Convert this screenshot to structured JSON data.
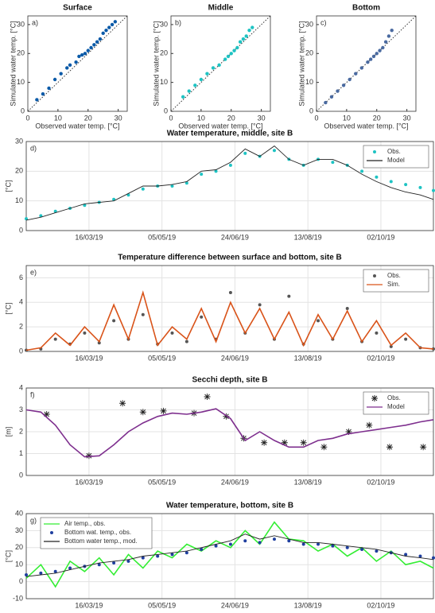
{
  "chart_data": [
    {
      "type": "scatter",
      "title": "Surface",
      "annotation": "a)",
      "x_label": "Observed water temp. [°C]",
      "y_label": "Simulated water temp. [°C]",
      "x": [
        3,
        5,
        7,
        9,
        11,
        13,
        14,
        16,
        17,
        18,
        19,
        20,
        21,
        22,
        23,
        24,
        25,
        26,
        27,
        28,
        29
      ],
      "values": [
        4,
        6,
        8,
        11,
        13,
        15,
        16,
        17,
        19,
        19.5,
        20,
        21,
        22,
        23,
        24,
        25,
        27,
        28,
        29,
        30,
        31
      ],
      "color": "#0a5aa8",
      "xlim": [
        0,
        33
      ],
      "ylim": [
        0,
        33
      ],
      "xticks": [
        0,
        10,
        20,
        30
      ],
      "yticks": [
        0,
        10,
        20,
        30
      ],
      "grid": false
    },
    {
      "type": "scatter",
      "title": "Middle",
      "annotation": "b)",
      "x_label": "Observed water temp. [°C]",
      "y_label": "Simulated water temp. [°C]",
      "x": [
        4,
        6,
        8,
        10,
        12,
        14,
        16,
        18,
        19,
        20,
        21,
        22,
        23,
        24,
        25,
        26,
        27
      ],
      "values": [
        5,
        7,
        9,
        11,
        13,
        15,
        16,
        18,
        19,
        20,
        21,
        22,
        24,
        25,
        26,
        28,
        29
      ],
      "color": "#1ec3c3",
      "xlim": [
        0,
        33
      ],
      "ylim": [
        0,
        33
      ],
      "xticks": [
        0,
        10,
        20,
        30
      ],
      "yticks": [
        0,
        10,
        20,
        30
      ],
      "grid": false
    },
    {
      "type": "scatter",
      "title": "Bottom",
      "annotation": "c)",
      "x_label": "Observed water temp. [°C]",
      "y_label": "Simulated water temp. [°C]",
      "x": [
        3,
        5,
        7,
        9,
        11,
        13,
        15,
        17,
        18,
        19,
        20,
        21,
        22,
        23,
        24,
        25
      ],
      "values": [
        3,
        5,
        7,
        9,
        11,
        13,
        15,
        17,
        18,
        19,
        20,
        21,
        22,
        24,
        26,
        28
      ],
      "color": "#4a6aa0",
      "xlim": [
        0,
        33
      ],
      "ylim": [
        0,
        33
      ],
      "xticks": [
        0,
        10,
        20,
        30
      ],
      "yticks": [
        0,
        10,
        20,
        30
      ],
      "grid": false
    },
    {
      "type": "line",
      "title": "Water temperature, middle, site B",
      "annotation": "d)",
      "y_label": "[°C]",
      "legend": "upper right",
      "x": [
        "2019-02-01",
        "2019-02-11",
        "2019-02-21",
        "2019-03-03",
        "2019-03-13",
        "2019-03-23",
        "2019-04-02",
        "2019-04-12",
        "2019-04-22",
        "2019-05-02",
        "2019-05-12",
        "2019-05-22",
        "2019-06-01",
        "2019-06-11",
        "2019-06-21",
        "2019-07-01",
        "2019-07-11",
        "2019-07-21",
        "2019-07-31",
        "2019-08-10",
        "2019-08-20",
        "2019-08-30",
        "2019-09-09",
        "2019-09-19",
        "2019-09-29",
        "2019-10-09",
        "2019-10-19",
        "2019-10-29",
        "2019-11-07"
      ],
      "series": [
        {
          "name": "Obs.",
          "color": "#1ec3c3",
          "marker": "dot",
          "values": [
            4,
            5,
            6.5,
            7.5,
            8.5,
            9.5,
            10.5,
            12,
            14,
            15,
            15,
            16,
            19,
            20,
            22,
            26,
            25,
            27,
            24,
            22,
            24,
            23,
            22,
            20,
            18,
            16.5,
            15.5,
            14.5,
            13.5
          ]
        },
        {
          "name": "Model",
          "color": "#222222",
          "values": [
            3.5,
            4.5,
            6,
            7.5,
            9,
            9.5,
            10,
            12.5,
            15,
            15,
            15.5,
            16.5,
            20,
            20.5,
            23,
            27.5,
            25,
            28.5,
            24,
            22,
            24,
            24,
            22,
            19,
            16.5,
            14.5,
            13,
            12,
            10.5
          ]
        }
      ],
      "xlim": [
        "2019-02-01",
        "2019-11-07"
      ],
      "ylim": [
        0,
        30
      ],
      "yticks": [
        0,
        10,
        20,
        30
      ],
      "xticks": [
        {
          "value": "2019-03-16",
          "label": "16/03/19"
        },
        {
          "value": "2019-05-05",
          "label": "05/05/19"
        },
        {
          "value": "2019-06-24",
          "label": "24/06/19"
        },
        {
          "value": "2019-08-13",
          "label": "13/08/19"
        },
        {
          "value": "2019-10-02",
          "label": "02/10/19"
        }
      ],
      "grid": true
    },
    {
      "type": "line",
      "title": "Temperature difference between surface and bottom, site B",
      "annotation": "e)",
      "y_label": "[°C]",
      "legend": "upper right",
      "x": [
        "2019-02-01",
        "2019-02-11",
        "2019-02-21",
        "2019-03-03",
        "2019-03-13",
        "2019-03-23",
        "2019-04-02",
        "2019-04-12",
        "2019-04-22",
        "2019-05-02",
        "2019-05-12",
        "2019-05-22",
        "2019-06-01",
        "2019-06-11",
        "2019-06-21",
        "2019-07-01",
        "2019-07-11",
        "2019-07-21",
        "2019-07-31",
        "2019-08-10",
        "2019-08-20",
        "2019-08-30",
        "2019-09-09",
        "2019-09-19",
        "2019-09-29",
        "2019-10-09",
        "2019-10-19",
        "2019-10-29",
        "2019-11-07"
      ],
      "series": [
        {
          "name": "Obs.",
          "color": "#555555",
          "marker": "dot",
          "values": [
            0.1,
            0.2,
            1,
            0.6,
            1.5,
            0.7,
            2.5,
            1,
            3,
            0.6,
            1.5,
            0.8,
            2.8,
            1,
            4.8,
            1.5,
            3.8,
            1,
            4.5,
            0.6,
            2.5,
            1,
            3.5,
            0.8,
            1.5,
            0.4,
            1,
            0.3,
            0.2
          ]
        },
        {
          "name": "Sim.",
          "color": "#d95319",
          "values": [
            0.1,
            0.3,
            1.5,
            0.5,
            2,
            0.8,
            3.8,
            1,
            4.8,
            0.5,
            2,
            1,
            3.5,
            0.8,
            4,
            1.5,
            3.5,
            1,
            3.2,
            0.5,
            3,
            1,
            3.3,
            0.8,
            2.5,
            0.5,
            1.5,
            0.3,
            0.2
          ]
        }
      ],
      "xlim": [
        "2019-02-01",
        "2019-11-07"
      ],
      "ylim": [
        0,
        7
      ],
      "yticks": [
        0,
        2,
        4,
        6
      ],
      "xticks": [
        {
          "value": "2019-03-16",
          "label": "16/03/19"
        },
        {
          "value": "2019-05-05",
          "label": "05/05/19"
        },
        {
          "value": "2019-06-24",
          "label": "24/06/19"
        },
        {
          "value": "2019-08-13",
          "label": "13/08/19"
        },
        {
          "value": "2019-10-02",
          "label": "02/10/19"
        }
      ],
      "grid": true
    },
    {
      "type": "line",
      "title": "Secchi depth, site B",
      "annotation": "f)",
      "y_label": "[m]",
      "legend": "upper right",
      "x": [
        "2019-02-01",
        "2019-02-11",
        "2019-02-21",
        "2019-03-03",
        "2019-03-13",
        "2019-03-23",
        "2019-04-02",
        "2019-04-12",
        "2019-04-22",
        "2019-05-02",
        "2019-05-12",
        "2019-05-22",
        "2019-06-01",
        "2019-06-11",
        "2019-06-21",
        "2019-07-01",
        "2019-07-11",
        "2019-07-21",
        "2019-07-31",
        "2019-08-10",
        "2019-08-20",
        "2019-08-30",
        "2019-09-09",
        "2019-09-19",
        "2019-09-29",
        "2019-10-09",
        "2019-10-19",
        "2019-10-29",
        "2019-11-07"
      ],
      "series": [
        {
          "name": "Obs.",
          "color": "#222222",
          "marker": "asterisk",
          "x": [
            "2019-02-15",
            "2019-03-16",
            "2019-04-08",
            "2019-04-22",
            "2019-05-06",
            "2019-05-27",
            "2019-06-05",
            "2019-06-18",
            "2019-06-30",
            "2019-07-14",
            "2019-07-28",
            "2019-08-10",
            "2019-08-24",
            "2019-09-10",
            "2019-09-24",
            "2019-10-08",
            "2019-10-31"
          ],
          "values": [
            2.8,
            0.9,
            3.3,
            2.9,
            2.95,
            2.85,
            3.6,
            2.7,
            1.7,
            1.5,
            1.5,
            1.5,
            1.3,
            2,
            2.3,
            1.3,
            1.3
          ]
        },
        {
          "name": "Model",
          "color": "#7e2f8e",
          "values": [
            3,
            2.9,
            2.3,
            1.4,
            0.85,
            0.9,
            1.4,
            2,
            2.4,
            2.7,
            2.85,
            2.8,
            2.9,
            3.05,
            2.6,
            1.6,
            2,
            1.6,
            1.3,
            1.3,
            1.6,
            1.7,
            1.9,
            2,
            2.1,
            2.2,
            2.3,
            2.45,
            2.55
          ]
        }
      ],
      "xlim": [
        "2019-02-01",
        "2019-11-07"
      ],
      "ylim": [
        0,
        4
      ],
      "yticks": [
        0,
        1,
        2,
        3,
        4
      ],
      "xticks": [
        {
          "value": "2019-03-16",
          "label": "16/03/19"
        },
        {
          "value": "2019-05-05",
          "label": "05/05/19"
        },
        {
          "value": "2019-06-24",
          "label": "24/06/19"
        },
        {
          "value": "2019-08-13",
          "label": "13/08/19"
        },
        {
          "value": "2019-10-02",
          "label": "02/10/19"
        }
      ],
      "grid": true
    },
    {
      "type": "line",
      "title": "Water temperature, bottom, site B",
      "annotation": "g)",
      "y_label": "[°C]",
      "legend": "upper left",
      "x": [
        "2019-02-01",
        "2019-02-11",
        "2019-02-21",
        "2019-03-03",
        "2019-03-13",
        "2019-03-23",
        "2019-04-02",
        "2019-04-12",
        "2019-04-22",
        "2019-05-02",
        "2019-05-12",
        "2019-05-22",
        "2019-06-01",
        "2019-06-11",
        "2019-06-21",
        "2019-07-01",
        "2019-07-11",
        "2019-07-21",
        "2019-07-31",
        "2019-08-10",
        "2019-08-20",
        "2019-08-30",
        "2019-09-09",
        "2019-09-19",
        "2019-09-29",
        "2019-10-09",
        "2019-10-19",
        "2019-10-29",
        "2019-11-07"
      ],
      "series": [
        {
          "name": "Air temp., obs.",
          "color": "#33ee33",
          "values": [
            2,
            10,
            -3,
            12,
            6,
            14,
            4,
            16,
            8,
            18,
            14,
            22,
            18,
            24,
            20,
            30,
            22,
            35,
            25,
            24,
            18,
            22,
            15,
            20,
            12,
            18,
            10,
            12,
            8
          ]
        },
        {
          "name": "Bottom wat. temp., obs.",
          "color": "#1f3f9f",
          "marker": "dot",
          "values": [
            4,
            5,
            6,
            8,
            9,
            10,
            11,
            12,
            14,
            15,
            16,
            17,
            19,
            21,
            22,
            24,
            23,
            25,
            24,
            22,
            22,
            21,
            20,
            19,
            18,
            17,
            16,
            15,
            14
          ]
        },
        {
          "name": "Bottom water temp., mod.",
          "color": "#222222",
          "values": [
            3,
            4,
            5,
            7,
            9,
            11,
            12,
            13,
            15,
            16,
            17,
            18,
            20,
            22,
            24,
            28,
            25,
            27,
            25,
            23,
            23,
            22,
            21,
            20,
            19,
            17,
            15,
            14,
            13
          ]
        }
      ],
      "xlim": [
        "2019-02-01",
        "2019-11-07"
      ],
      "ylim": [
        -10,
        40
      ],
      "yticks": [
        -10,
        0,
        10,
        20,
        30,
        40
      ],
      "xticks": [
        {
          "value": "2019-03-16",
          "label": "16/03/19"
        },
        {
          "value": "2019-05-05",
          "label": "05/05/19"
        },
        {
          "value": "2019-06-24",
          "label": "24/06/19"
        },
        {
          "value": "2019-08-13",
          "label": "13/08/19"
        },
        {
          "value": "2019-10-02",
          "label": "02/10/19"
        }
      ],
      "grid": true
    }
  ]
}
